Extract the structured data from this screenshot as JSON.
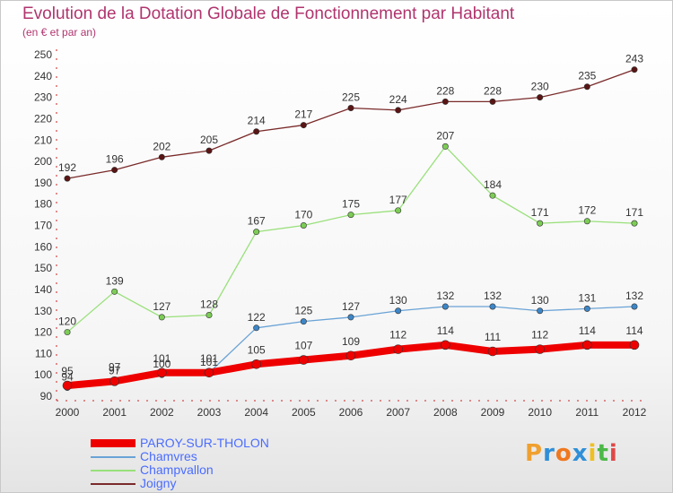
{
  "header": {
    "title": "Evolution de la Dotation Globale de Fonctionnement par Habitant",
    "subtitle": "(en € et par an)"
  },
  "brand": {
    "letters": [
      "P",
      "r",
      "o",
      "x",
      "i",
      "t",
      "i"
    ],
    "colors": [
      "#f0a030",
      "#2f8fd8",
      "#f07820",
      "#2f8fd8",
      "#f0c020",
      "#4cb848",
      "#e04848"
    ]
  },
  "chart_data": {
    "type": "line",
    "title": "Evolution de la Dotation Globale de Fonctionnement par Habitant",
    "subtitle": "(en € et par an)",
    "x": [
      "2000",
      "2001",
      "2002",
      "2003",
      "2004",
      "2005",
      "2006",
      "2007",
      "2008",
      "2009",
      "2010",
      "2011",
      "2012"
    ],
    "ylim": [
      90,
      250
    ],
    "yticks": [
      90,
      100,
      110,
      120,
      130,
      140,
      150,
      160,
      170,
      180,
      190,
      200,
      210,
      220,
      230,
      240,
      250
    ],
    "grid": false,
    "legend_position": "bottom-left",
    "series": [
      {
        "name": "Joigny",
        "color": "#7a2a2a",
        "marker": "#5a1414",
        "width": 1.3,
        "values": [
          192,
          196,
          202,
          205,
          214,
          217,
          225,
          224,
          228,
          228,
          230,
          235,
          243
        ],
        "labels": [
          "192",
          "196",
          "202",
          "205",
          "214",
          "217",
          "225",
          "224",
          "228",
          "228",
          "230",
          "235",
          "243"
        ]
      },
      {
        "name": "Champvallon",
        "color": "#99e07a",
        "marker": "#7ccc55",
        "width": 1.3,
        "values": [
          120,
          139,
          127,
          128,
          167,
          170,
          175,
          177,
          207,
          184,
          171,
          172,
          171
        ],
        "labels": [
          "120",
          "139",
          "127",
          "128",
          "167",
          "170",
          "175",
          "177",
          "207",
          "184",
          "171",
          "172",
          "171"
        ]
      },
      {
        "name": "Chamvres",
        "color": "#6aa3d6",
        "marker": "#3d86c8",
        "width": 1.3,
        "values": [
          94,
          97,
          100,
          101,
          122,
          125,
          127,
          130,
          132,
          132,
          130,
          131,
          132
        ],
        "labels": [
          "94",
          "97",
          "100",
          "101",
          "122",
          "125",
          "127",
          "130",
          "132",
          "132",
          "130",
          "131",
          "132"
        ]
      },
      {
        "name": "PAROY-SUR-THOLON",
        "color": "#ee0000",
        "marker": "#ee0000",
        "width": 8,
        "values": [
          95,
          97,
          101,
          101,
          105,
          107,
          109,
          112,
          114,
          111,
          112,
          114,
          114
        ],
        "labels": [
          "95",
          "97",
          "101",
          "101",
          "105",
          "107",
          "109",
          "112",
          "114",
          "111",
          "112",
          "114",
          "114"
        ]
      }
    ]
  }
}
